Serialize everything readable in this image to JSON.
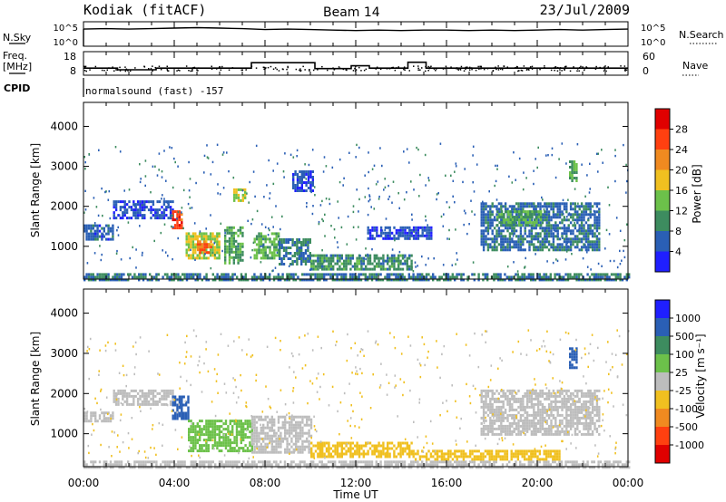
{
  "header": {
    "station": "Kodiak (fitACF)",
    "beam": "Beam 14",
    "date": "23/Jul/2009"
  },
  "left_labels": {
    "nsky": "N.Sky",
    "freq": "Freq.",
    "freq_unit": "[MHz]",
    "cpid": "CPID"
  },
  "right_labels": {
    "nsearch": "N.Search",
    "nave": "Nave"
  },
  "cpid_text": "normalsound (fast) -157",
  "time_axis": {
    "label": "Time UT",
    "ticks": [
      "00:00",
      "04:00",
      "08:00",
      "12:00",
      "16:00",
      "20:00",
      "00:00"
    ]
  },
  "colors": {
    "scale": [
      "#1f1fff",
      "#2a5fb5",
      "#3d8c5f",
      "#6cc14a",
      "#f0c020",
      "#f08a20",
      "#ff4010",
      "#e00000"
    ],
    "ground_scatter": "#bdbdbd"
  },
  "chart_data": [
    {
      "type": "line",
      "panel": "noise",
      "left_axis": {
        "label": "N.Sky",
        "ticks": [
          "10^5",
          "10^0"
        ]
      },
      "right_axis": {
        "label": "N.Search",
        "ticks": [
          "10^5",
          "10^0"
        ]
      },
      "x": [
        0,
        1,
        2,
        3,
        4,
        5,
        6,
        7,
        8,
        9,
        10,
        11,
        12,
        13,
        14,
        15,
        16,
        17,
        18,
        19,
        20,
        21,
        22,
        23,
        24
      ],
      "series": [
        {
          "name": "N.Sky",
          "values": [
            3.5,
            3.6,
            3.5,
            3.6,
            3.7,
            3.8,
            3.7,
            3.6,
            3.4,
            3.5,
            3.4,
            3.3,
            3.2,
            3.3,
            3.2,
            3.3,
            3.3,
            3.2,
            3.3,
            3.2,
            3.3,
            3.4,
            3.3,
            3.4,
            3.5
          ]
        }
      ]
    },
    {
      "type": "line",
      "panel": "frequency",
      "left_axis": {
        "label": "Freq. [MHz]",
        "ticks": [
          "18",
          "8"
        ]
      },
      "right_axis": {
        "label": "Nave",
        "ticks": [
          "60",
          "0"
        ]
      },
      "x_steps": [
        0,
        1.5,
        3.2,
        5.6,
        7.4,
        10.2,
        11.8,
        12.6,
        14.3,
        15.1,
        17.0,
        24
      ],
      "series": [
        {
          "name": "Freq.",
          "values": [
            11.0,
            10.3,
            11.0,
            11.0,
            13.3,
            10.8,
            12.0,
            11.0,
            13.5,
            11.0,
            11.0,
            11.0
          ]
        }
      ]
    },
    {
      "type": "heatmap",
      "panel": "power",
      "title": "",
      "xlabel": "",
      "ylabel": "Slant Range [km]",
      "xlim": [
        0,
        24
      ],
      "ylim": [
        180,
        4600
      ],
      "y_ticks": [
        1000,
        2000,
        3000,
        4000
      ],
      "colorbar": {
        "label": "Power [dB]",
        "ticks": [
          4,
          8,
          12,
          16,
          20,
          24,
          28
        ],
        "range": [
          0,
          32
        ]
      },
      "regions": [
        {
          "t0": 0.0,
          "t1": 24.0,
          "r0": 180,
          "r1": 330,
          "value": 8
        },
        {
          "t0": 0.0,
          "t1": 1.3,
          "r0": 1200,
          "r1": 1550,
          "value": 6
        },
        {
          "t0": 1.3,
          "t1": 3.9,
          "r0": 1700,
          "r1": 2150,
          "value": 5
        },
        {
          "t0": 3.9,
          "t1": 4.3,
          "r0": 1450,
          "r1": 1900,
          "value": 26
        },
        {
          "t0": 4.5,
          "t1": 6.0,
          "r0": 700,
          "r1": 1350,
          "value": 16
        },
        {
          "t0": 5.0,
          "t1": 5.6,
          "r0": 850,
          "r1": 1150,
          "value": 24
        },
        {
          "t0": 6.2,
          "t1": 7.0,
          "r0": 550,
          "r1": 1500,
          "value": 12
        },
        {
          "t0": 6.6,
          "t1": 7.1,
          "r0": 2150,
          "r1": 2450,
          "value": 16
        },
        {
          "t0": 7.5,
          "t1": 8.6,
          "r0": 700,
          "r1": 1350,
          "value": 13
        },
        {
          "t0": 8.6,
          "t1": 10.0,
          "r0": 550,
          "r1": 1200,
          "value": 8
        },
        {
          "t0": 10.0,
          "t1": 14.5,
          "r0": 400,
          "r1": 800,
          "value": 10
        },
        {
          "t0": 9.2,
          "t1": 10.1,
          "r0": 2400,
          "r1": 2900,
          "value": 5
        },
        {
          "t0": 12.5,
          "t1": 15.3,
          "r0": 1200,
          "r1": 1500,
          "value": 5
        },
        {
          "t0": 17.5,
          "t1": 22.7,
          "r0": 900,
          "r1": 2100,
          "value": 7
        },
        {
          "t0": 18.2,
          "t1": 20.2,
          "r0": 1500,
          "r1": 1900,
          "value": 12
        },
        {
          "t0": 21.4,
          "t1": 21.7,
          "r0": 2650,
          "r1": 3150,
          "value": 12
        }
      ]
    },
    {
      "type": "heatmap",
      "panel": "velocity",
      "title": "",
      "xlabel": "Time UT",
      "ylabel": "Slant Range [km]",
      "xlim": [
        0,
        24
      ],
      "ylim": [
        180,
        4600
      ],
      "y_ticks": [
        1000,
        2000,
        3000,
        4000
      ],
      "colorbar": {
        "label": "Velocity [m s⁻¹]",
        "ticks": [
          "1000",
          "500",
          "100",
          "25",
          "-25",
          "-100",
          "-500",
          "-1000"
        ]
      },
      "regions": [
        {
          "t0": 0.0,
          "t1": 24.0,
          "r0": 180,
          "r1": 330,
          "value": 0
        },
        {
          "t0": 0.0,
          "t1": 1.3,
          "r0": 1300,
          "r1": 1550,
          "value": 0
        },
        {
          "t0": 1.3,
          "t1": 3.9,
          "r0": 1750,
          "r1": 2100,
          "value": 0
        },
        {
          "t0": 3.9,
          "t1": 4.6,
          "r0": 1350,
          "r1": 1950,
          "value": 200
        },
        {
          "t0": 4.6,
          "t1": 7.4,
          "r0": 550,
          "r1": 1350,
          "value": 60
        },
        {
          "t0": 7.4,
          "t1": 10.0,
          "r0": 550,
          "r1": 1450,
          "value": 0
        },
        {
          "t0": 10.0,
          "t1": 14.5,
          "r0": 400,
          "r1": 800,
          "value": -70
        },
        {
          "t0": 14.5,
          "t1": 21.0,
          "r0": 350,
          "r1": 600,
          "value": -60
        },
        {
          "t0": 17.5,
          "t1": 22.7,
          "r0": 1000,
          "r1": 2100,
          "value": 0
        },
        {
          "t0": 21.4,
          "t1": 21.7,
          "r0": 2650,
          "r1": 3150,
          "value": 300
        }
      ]
    }
  ]
}
